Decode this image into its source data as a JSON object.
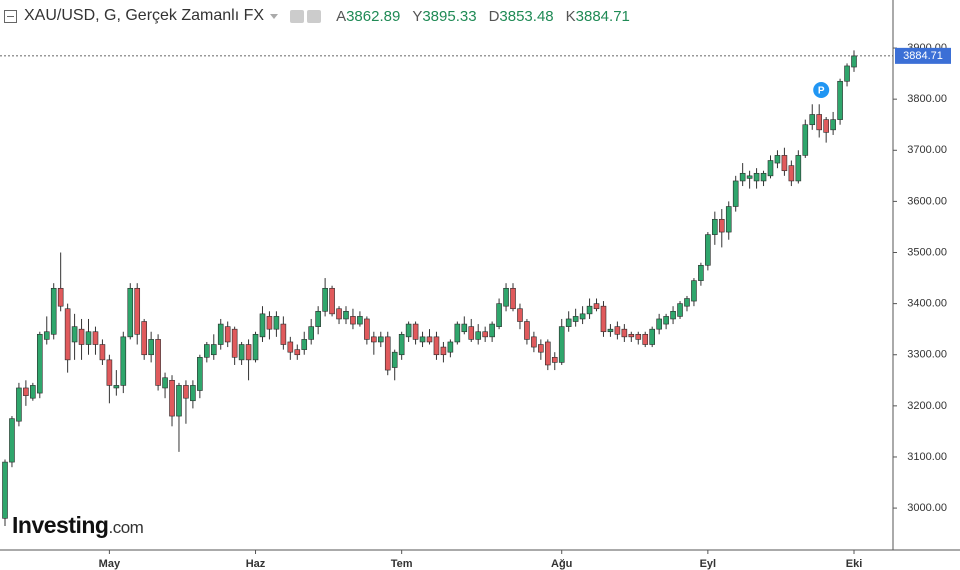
{
  "header": {
    "symbol_title": "XAU/USD, G, Gerçek Zamanlı FX",
    "ohlc_letters": [
      "A",
      "Y",
      "D",
      "K"
    ]
  },
  "logo": {
    "brand": "Investing",
    "suffix": ".com"
  },
  "chart_data": {
    "type": "candlestick",
    "marker_label": "P",
    "up_color": "#2fa66c",
    "down_color": "#e05a5c",
    "ylim": [
      2918,
      3994
    ],
    "yticks": [
      {
        "value": 3000,
        "label": "3000.00"
      },
      {
        "value": 3100,
        "label": "3100.00"
      },
      {
        "value": 3200,
        "label": "3200.00"
      },
      {
        "value": 3300,
        "label": "3300.00"
      },
      {
        "value": 3400,
        "label": "3400.00"
      },
      {
        "value": 3500,
        "label": "3500.00"
      },
      {
        "value": 3600,
        "label": "3600.00"
      },
      {
        "value": 3700,
        "label": "3700.00"
      },
      {
        "value": 3800,
        "label": "3800.00"
      },
      {
        "value": 3900,
        "label": "3900.00"
      }
    ],
    "categories": [
      null,
      null,
      null,
      null,
      null,
      null,
      null,
      null,
      null,
      null,
      null,
      null,
      null,
      null,
      null,
      "May",
      null,
      null,
      null,
      null,
      null,
      null,
      null,
      null,
      null,
      null,
      null,
      null,
      null,
      null,
      null,
      null,
      null,
      null,
      null,
      null,
      "Haz",
      null,
      null,
      null,
      null,
      null,
      null,
      null,
      null,
      null,
      null,
      null,
      null,
      null,
      null,
      null,
      null,
      null,
      null,
      null,
      null,
      "Tem",
      null,
      null,
      null,
      null,
      null,
      null,
      null,
      null,
      null,
      null,
      null,
      null,
      null,
      null,
      null,
      null,
      null,
      null,
      null,
      null,
      null,
      null,
      "Ağu",
      null,
      null,
      null,
      null,
      null,
      null,
      null,
      null,
      null,
      null,
      null,
      null,
      null,
      null,
      null,
      null,
      null,
      null,
      null,
      null,
      "Eyl",
      null,
      null,
      null,
      null,
      null,
      null,
      null,
      null,
      null,
      null,
      null,
      null,
      null,
      null,
      null,
      null,
      null,
      null,
      null,
      null,
      "Eki"
    ],
    "open": [
      2980,
      3090,
      3170,
      3235,
      3215,
      3225,
      3330,
      3340,
      3430,
      3390,
      3325,
      3350,
      3320,
      3345,
      3320,
      3290,
      3235,
      3240,
      3335,
      3430,
      3365,
      3300,
      3330,
      3235,
      3250,
      3180,
      3240,
      3210,
      3230,
      3295,
      3300,
      3320,
      3355,
      3350,
      3290,
      3320,
      3290,
      3335,
      3375,
      3350,
      3360,
      3325,
      3310,
      3310,
      3330,
      3355,
      3385,
      3430,
      3390,
      3370,
      3375,
      3360,
      3370,
      3335,
      3325,
      3335,
      3275,
      3300,
      3335,
      3360,
      3325,
      3335,
      3335,
      3315,
      3305,
      3325,
      3345,
      3355,
      3330,
      3345,
      3335,
      3355,
      3395,
      3430,
      3390,
      3365,
      3335,
      3320,
      3325,
      3295,
      3285,
      3355,
      3365,
      3370,
      3380,
      3400,
      3395,
      3345,
      3355,
      3350,
      3340,
      3340,
      3340,
      3320,
      3350,
      3360,
      3370,
      3375,
      3395,
      3405,
      3445,
      3475,
      3535,
      3565,
      3540,
      3590,
      3640,
      3645,
      3640,
      3640,
      3650,
      3675,
      3690,
      3670,
      3640,
      3690,
      3750,
      3770,
      3760,
      3740,
      3760,
      3835,
      3862.89
    ],
    "high": [
      3095,
      3180,
      3245,
      3250,
      3245,
      3345,
      3375,
      3440,
      3500,
      3400,
      3380,
      3370,
      3370,
      3355,
      3330,
      3300,
      3270,
      3345,
      3440,
      3440,
      3370,
      3345,
      3340,
      3265,
      3260,
      3245,
      3250,
      3250,
      3300,
      3325,
      3340,
      3370,
      3365,
      3355,
      3325,
      3330,
      3345,
      3395,
      3385,
      3385,
      3375,
      3335,
      3320,
      3345,
      3370,
      3395,
      3450,
      3435,
      3395,
      3395,
      3390,
      3385,
      3375,
      3345,
      3345,
      3345,
      3310,
      3345,
      3365,
      3365,
      3345,
      3350,
      3345,
      3325,
      3330,
      3365,
      3375,
      3370,
      3360,
      3355,
      3365,
      3410,
      3440,
      3440,
      3400,
      3370,
      3345,
      3330,
      3330,
      3305,
      3370,
      3385,
      3390,
      3395,
      3410,
      3410,
      3405,
      3360,
      3365,
      3360,
      3345,
      3345,
      3345,
      3355,
      3380,
      3380,
      3395,
      3405,
      3415,
      3450,
      3480,
      3540,
      3580,
      3585,
      3600,
      3650,
      3675,
      3660,
      3665,
      3660,
      3690,
      3700,
      3705,
      3680,
      3700,
      3760,
      3790,
      3790,
      3765,
      3775,
      3840,
      3870,
      3895.33
    ],
    "low": [
      2965,
      3080,
      3160,
      3200,
      3210,
      3215,
      3320,
      3330,
      3385,
      3265,
      3290,
      3290,
      3300,
      3300,
      3280,
      3205,
      3220,
      3225,
      3330,
      3320,
      3290,
      3285,
      3230,
      3215,
      3160,
      3110,
      3165,
      3195,
      3215,
      3285,
      3290,
      3310,
      3315,
      3280,
      3280,
      3250,
      3285,
      3325,
      3330,
      3335,
      3310,
      3290,
      3290,
      3300,
      3320,
      3340,
      3375,
      3375,
      3360,
      3360,
      3350,
      3355,
      3320,
      3300,
      3315,
      3260,
      3250,
      3290,
      3325,
      3320,
      3315,
      3320,
      3290,
      3285,
      3295,
      3320,
      3340,
      3325,
      3320,
      3325,
      3325,
      3350,
      3385,
      3385,
      3350,
      3320,
      3305,
      3290,
      3270,
      3270,
      3280,
      3345,
      3355,
      3360,
      3370,
      3385,
      3335,
      3335,
      3330,
      3325,
      3325,
      3320,
      3315,
      3315,
      3340,
      3350,
      3360,
      3370,
      3385,
      3395,
      3435,
      3465,
      3515,
      3510,
      3525,
      3580,
      3630,
      3625,
      3625,
      3630,
      3645,
      3665,
      3650,
      3630,
      3635,
      3685,
      3740,
      3725,
      3715,
      3730,
      3750,
      3825,
      3853.48
    ],
    "close": [
      3090,
      3175,
      3235,
      3220,
      3240,
      3340,
      3345,
      3430,
      3395,
      3290,
      3355,
      3320,
      3345,
      3320,
      3290,
      3240,
      3240,
      3335,
      3430,
      3340,
      3300,
      3330,
      3240,
      3255,
      3180,
      3240,
      3215,
      3240,
      3295,
      3320,
      3320,
      3360,
      3325,
      3295,
      3320,
      3290,
      3340,
      3380,
      3350,
      3375,
      3320,
      3305,
      3300,
      3330,
      3355,
      3385,
      3430,
      3380,
      3370,
      3385,
      3360,
      3375,
      3330,
      3325,
      3335,
      3270,
      3305,
      3340,
      3360,
      3330,
      3335,
      3325,
      3300,
      3300,
      3325,
      3360,
      3360,
      3330,
      3345,
      3335,
      3360,
      3400,
      3430,
      3390,
      3365,
      3330,
      3315,
      3305,
      3280,
      3285,
      3355,
      3370,
      3375,
      3380,
      3395,
      3390,
      3345,
      3350,
      3340,
      3335,
      3335,
      3330,
      3320,
      3350,
      3370,
      3375,
      3385,
      3400,
      3410,
      3445,
      3475,
      3535,
      3565,
      3540,
      3590,
      3640,
      3655,
      3650,
      3655,
      3655,
      3680,
      3690,
      3660,
      3640,
      3690,
      3750,
      3770,
      3740,
      3735,
      3760,
      3835,
      3865,
      3884.71
    ]
  }
}
